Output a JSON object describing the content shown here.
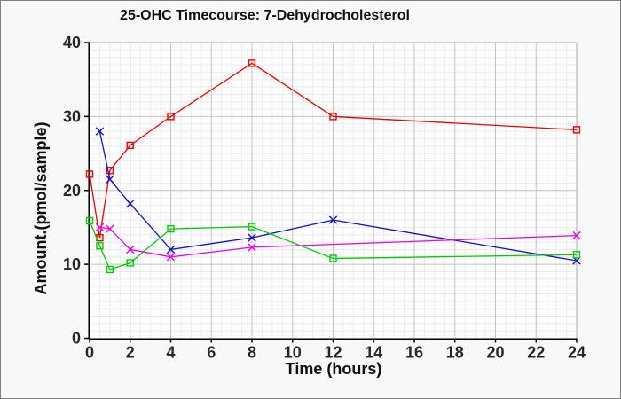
{
  "window": {
    "background": "#f8f8f8",
    "border_color": "#7f7f7f"
  },
  "chart_data": {
    "type": "line",
    "title": "25-OHC Timecourse: 7-Dehydrocholesterol",
    "xlabel": "Time (hours)",
    "ylabel": "Amount.(pmol/sample)",
    "xlim": [
      0,
      24
    ],
    "ylim": [
      0,
      40
    ],
    "xticks": [
      0,
      2,
      4,
      6,
      8,
      10,
      12,
      14,
      16,
      18,
      20,
      22,
      24
    ],
    "yticks": [
      0,
      10,
      20,
      30,
      40
    ],
    "grid": "major and minor, on",
    "minor_x_step_hours": 0.5,
    "minor_y_step_units": 1,
    "legend": "none",
    "plot_bg": "#fdfdfd",
    "axis_color": "#000000",
    "major_grid_color": "#c3c3c3",
    "minor_grid_color": "#ececec",
    "plot_frame_color": "#b8b8b8",
    "tick_label_color": "#262626",
    "series": [
      {
        "name": "red-squares",
        "color": "#ee0000",
        "marker": "square",
        "x": [
          0,
          0.5,
          1,
          2,
          4,
          8,
          12,
          24
        ],
        "y": [
          22.2,
          13.6,
          22.7,
          26.1,
          30,
          37.2,
          30,
          28.2
        ]
      },
      {
        "name": "blue-crosses",
        "color": "#1111cc",
        "marker": "x",
        "x": [
          0.5,
          1,
          2,
          4,
          8,
          12,
          24
        ],
        "y": [
          28,
          21.5,
          18.2,
          12,
          13.6,
          16,
          10.5
        ]
      },
      {
        "name": "green-squares",
        "color": "#00cc00",
        "marker": "square",
        "x": [
          0,
          0.5,
          1,
          2,
          4,
          8,
          12,
          24
        ],
        "y": [
          15.9,
          12.5,
          9.3,
          10.2,
          14.8,
          15.1,
          10.8,
          11.3
        ]
      },
      {
        "name": "magenta-crosses",
        "color": "#ee00ee",
        "marker": "x",
        "x": [
          0.5,
          1,
          2,
          4,
          8,
          24
        ],
        "y": [
          15,
          14.8,
          12,
          11,
          12.3,
          13.9
        ]
      }
    ]
  }
}
